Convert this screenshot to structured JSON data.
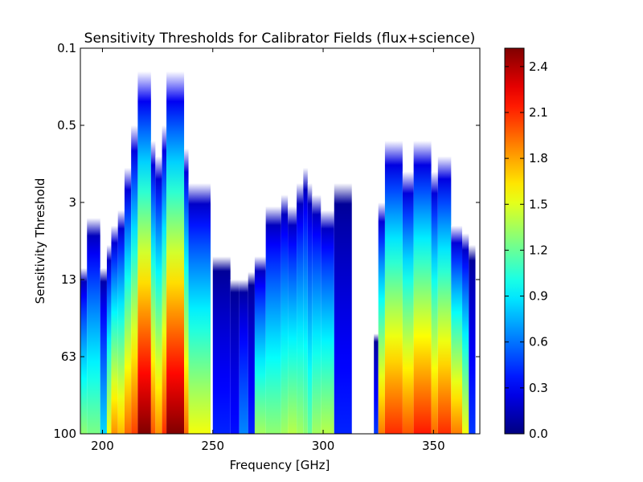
{
  "chart_data": {
    "type": "heatmap",
    "title": "Sensitivity Thresholds for Calibrator Fields (flux+science)",
    "xlabel": "Frequency [GHz]",
    "ylabel": "Sensitivity Threshold",
    "xlim": [
      190,
      371
    ],
    "x_ticks": [
      200,
      250,
      300,
      350
    ],
    "y_tick_labels": [
      "0.1",
      "0.5",
      "3",
      "13",
      "63",
      "100"
    ],
    "colorbar": {
      "min": 0.0,
      "max": 2.52,
      "colormap": "jet",
      "ticks": [
        0.0,
        0.3,
        0.6,
        0.9,
        1.2,
        1.5,
        1.8,
        2.1,
        2.4
      ],
      "tick_labels": [
        "0.0",
        "0.3",
        "0.6",
        "0.9",
        "1.2",
        "1.5",
        "1.8",
        "2.1",
        "2.4"
      ]
    },
    "grid": false,
    "columns_note": "each column: freq range [GHz], top = sensitivity band index (0 = 0.1 at top, 5 = 100 at bottom) where data begins, peak = max value at bottom",
    "columns": [
      {
        "f0": 190,
        "f1": 193,
        "top": 2.85,
        "peak": 1.3
      },
      {
        "f0": 193,
        "f1": 199,
        "top": 2.2,
        "peak": 1.25
      },
      {
        "f0": 199,
        "f1": 202,
        "top": 2.85,
        "peak": 0.85
      },
      {
        "f0": 202,
        "f1": 204,
        "top": 2.55,
        "peak": 1.55
      },
      {
        "f0": 204,
        "f1": 207,
        "top": 2.3,
        "peak": 1.85
      },
      {
        "f0": 207,
        "f1": 210,
        "top": 2.1,
        "peak": 1.75
      },
      {
        "f0": 210,
        "f1": 213,
        "top": 1.55,
        "peak": 1.95
      },
      {
        "f0": 213,
        "f1": 216,
        "top": 1.0,
        "peak": 2.05
      },
      {
        "f0": 216,
        "f1": 222,
        "top": 0.3,
        "peak": 2.52
      },
      {
        "f0": 222,
        "f1": 224,
        "top": 1.2,
        "peak": 2.0
      },
      {
        "f0": 224,
        "f1": 227,
        "top": 1.4,
        "peak": 1.85
      },
      {
        "f0": 227,
        "f1": 229,
        "top": 1.0,
        "peak": 2.1
      },
      {
        "f0": 229,
        "f1": 237,
        "top": 0.3,
        "peak": 2.52
      },
      {
        "f0": 237,
        "f1": 239,
        "top": 1.3,
        "peak": 1.95
      },
      {
        "f0": 239,
        "f1": 249,
        "top": 1.75,
        "peak": 1.55
      },
      {
        "f0": 250,
        "f1": 258,
        "top": 2.7,
        "peak": 0.4
      },
      {
        "f0": 258,
        "f1": 262,
        "top": 3.0,
        "peak": 0.35
      },
      {
        "f0": 262,
        "f1": 266,
        "top": 3.0,
        "peak": 0.65
      },
      {
        "f0": 266,
        "f1": 269,
        "top": 2.9,
        "peak": 0.4
      },
      {
        "f0": 269,
        "f1": 274,
        "top": 2.7,
        "peak": 1.35
      },
      {
        "f0": 274,
        "f1": 281,
        "top": 2.05,
        "peak": 1.3
      },
      {
        "f0": 281,
        "f1": 284,
        "top": 1.9,
        "peak": 1.35
      },
      {
        "f0": 284,
        "f1": 288,
        "top": 2.05,
        "peak": 1.4
      },
      {
        "f0": 288,
        "f1": 291,
        "top": 1.75,
        "peak": 1.35
      },
      {
        "f0": 291,
        "f1": 293,
        "top": 1.55,
        "peak": 1.3
      },
      {
        "f0": 293,
        "f1": 295,
        "top": 1.75,
        "peak": 1.2
      },
      {
        "f0": 295,
        "f1": 299,
        "top": 1.9,
        "peak": 1.35
      },
      {
        "f0": 299,
        "f1": 305,
        "top": 2.1,
        "peak": 1.4
      },
      {
        "f0": 305,
        "f1": 313,
        "top": 1.75,
        "peak": 0.4
      },
      {
        "f0": 323,
        "f1": 325,
        "top": 3.7,
        "peak": 0.45
      },
      {
        "f0": 325,
        "f1": 328,
        "top": 2.0,
        "peak": 1.9
      },
      {
        "f0": 328,
        "f1": 336,
        "top": 1.2,
        "peak": 2.1
      },
      {
        "f0": 336,
        "f1": 341,
        "top": 1.6,
        "peak": 2.0
      },
      {
        "f0": 341,
        "f1": 349,
        "top": 1.2,
        "peak": 2.15
      },
      {
        "f0": 349,
        "f1": 352,
        "top": 1.6,
        "peak": 1.95
      },
      {
        "f0": 352,
        "f1": 358,
        "top": 1.4,
        "peak": 2.1
      },
      {
        "f0": 358,
        "f1": 363,
        "top": 2.3,
        "peak": 1.9
      },
      {
        "f0": 363,
        "f1": 366,
        "top": 2.4,
        "peak": 1.55
      },
      {
        "f0": 366,
        "f1": 369,
        "top": 2.55,
        "peak": 0.45
      }
    ]
  }
}
